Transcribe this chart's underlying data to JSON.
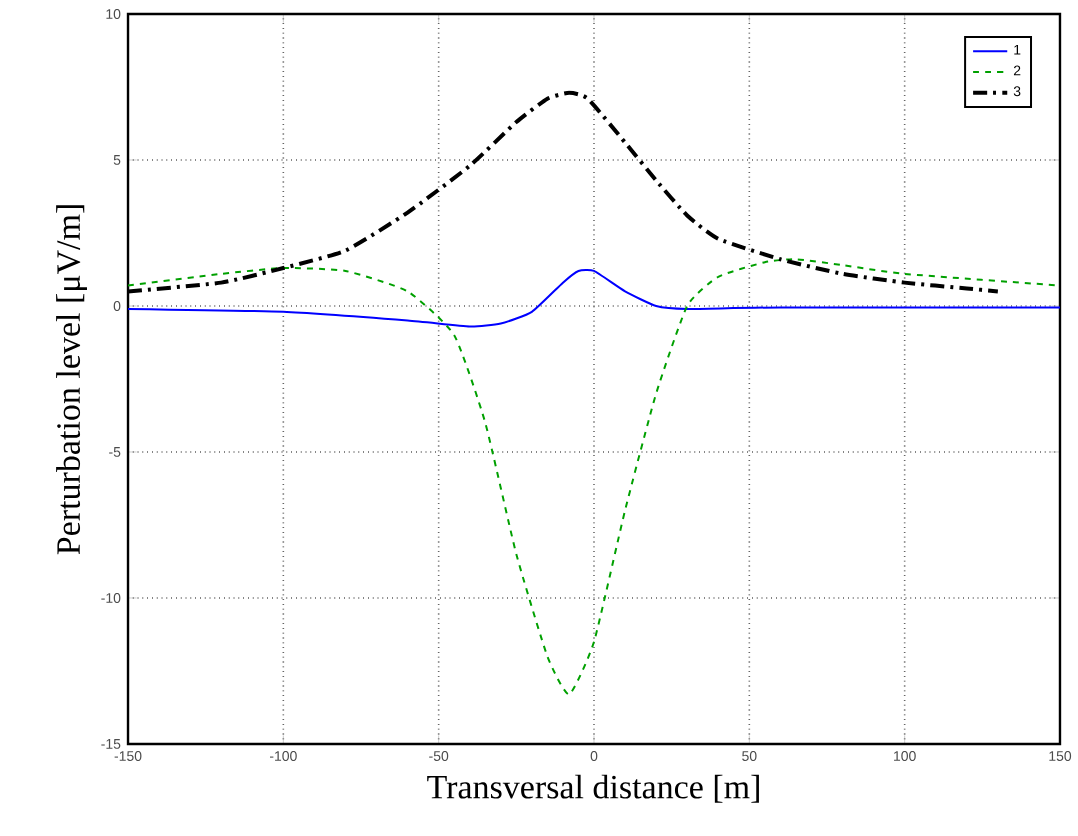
{
  "chart_data": {
    "type": "line",
    "xlabel": "Transversal distance [m]",
    "ylabel": "Perturbation level  [μV/m]",
    "xlim": [
      -150,
      150
    ],
    "ylim": [
      -15,
      10
    ],
    "xticks": [
      -150,
      -100,
      -50,
      0,
      50,
      100,
      150
    ],
    "yticks": [
      -15,
      -10,
      -5,
      0,
      5,
      10
    ],
    "grid": true,
    "legend": "top right",
    "series": [
      {
        "name": "1",
        "color": "#0000ff",
        "line_style": "solid",
        "x": [
          -150,
          -100,
          -60,
          -40,
          -30,
          -20,
          -10,
          -5,
          0,
          10,
          20,
          30,
          60,
          150
        ],
        "values": [
          -0.1,
          -0.2,
          -0.5,
          -0.7,
          -0.6,
          -0.2,
          0.8,
          1.2,
          1.2,
          0.5,
          0,
          -0.1,
          -0.05,
          -0.05
        ]
      },
      {
        "name": "2",
        "color": "#00a000",
        "line_style": "dashed",
        "x": [
          -150,
          -120,
          -100,
          -80,
          -60,
          -45,
          -35,
          -25,
          -15,
          -8,
          0,
          10,
          20,
          30,
          40,
          55,
          65,
          80,
          100,
          150
        ],
        "values": [
          0.7,
          1.1,
          1.3,
          1.2,
          0.5,
          -1,
          -4,
          -8.5,
          -12,
          -13.3,
          -11.5,
          -7,
          -3,
          0,
          1,
          1.5,
          1.6,
          1.4,
          1.1,
          0.7
        ]
      },
      {
        "name": "3",
        "color": "#000000",
        "line_style": "dashdot",
        "x": [
          -150,
          -120,
          -100,
          -80,
          -60,
          -40,
          -25,
          -15,
          -8,
          -2,
          10,
          20,
          30,
          40,
          60,
          80,
          100,
          120,
          130
        ],
        "values": [
          0.5,
          0.8,
          1.3,
          1.9,
          3.2,
          4.8,
          6.3,
          7.1,
          7.3,
          7.1,
          5.6,
          4.3,
          3.1,
          2.3,
          1.6,
          1.1,
          0.8,
          0.6,
          0.5
        ]
      }
    ]
  }
}
